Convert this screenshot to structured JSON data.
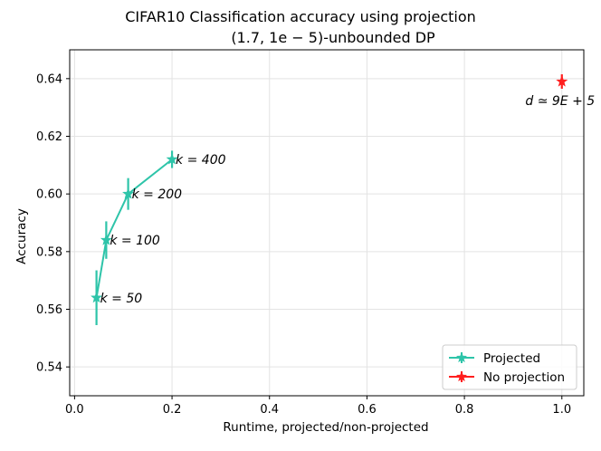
{
  "chart_data": {
    "type": "line",
    "title": "CIFAR10 Classification accuracy using projection",
    "subtitle": "(1.7, 1e − 5)-unbounded DP",
    "xlabel": "Runtime, projected/non-projected",
    "ylabel": "Accuracy",
    "xlim": [
      -0.01,
      1.045
    ],
    "ylim": [
      0.53,
      0.65
    ],
    "grid": true,
    "legend_position": "bottom-right",
    "x_ticks": [
      "0.0",
      "0.2",
      "0.4",
      "0.6",
      "0.8",
      "1.0"
    ],
    "y_ticks": [
      "0.54",
      "0.56",
      "0.58",
      "0.60",
      "0.62",
      "0.64"
    ],
    "series": [
      {
        "name": "Projected",
        "color": "#2ec4a9",
        "marker": "star",
        "points": [
          {
            "x": 0.045,
            "y": 0.564,
            "err": 0.0095,
            "label": "k = 50"
          },
          {
            "x": 0.065,
            "y": 0.584,
            "err": 0.0065,
            "label": "k = 100"
          },
          {
            "x": 0.11,
            "y": 0.6,
            "err": 0.0055,
            "label": "k = 200"
          },
          {
            "x": 0.2,
            "y": 0.612,
            "err": 0.003,
            "label": "k = 400"
          }
        ]
      },
      {
        "name": "No projection",
        "color": "#ff1f1f",
        "marker": "star",
        "points": [
          {
            "x": 1.0,
            "y": 0.639,
            "err": 0.0025,
            "label": "d ≃ 9E + 5"
          }
        ]
      }
    ]
  }
}
